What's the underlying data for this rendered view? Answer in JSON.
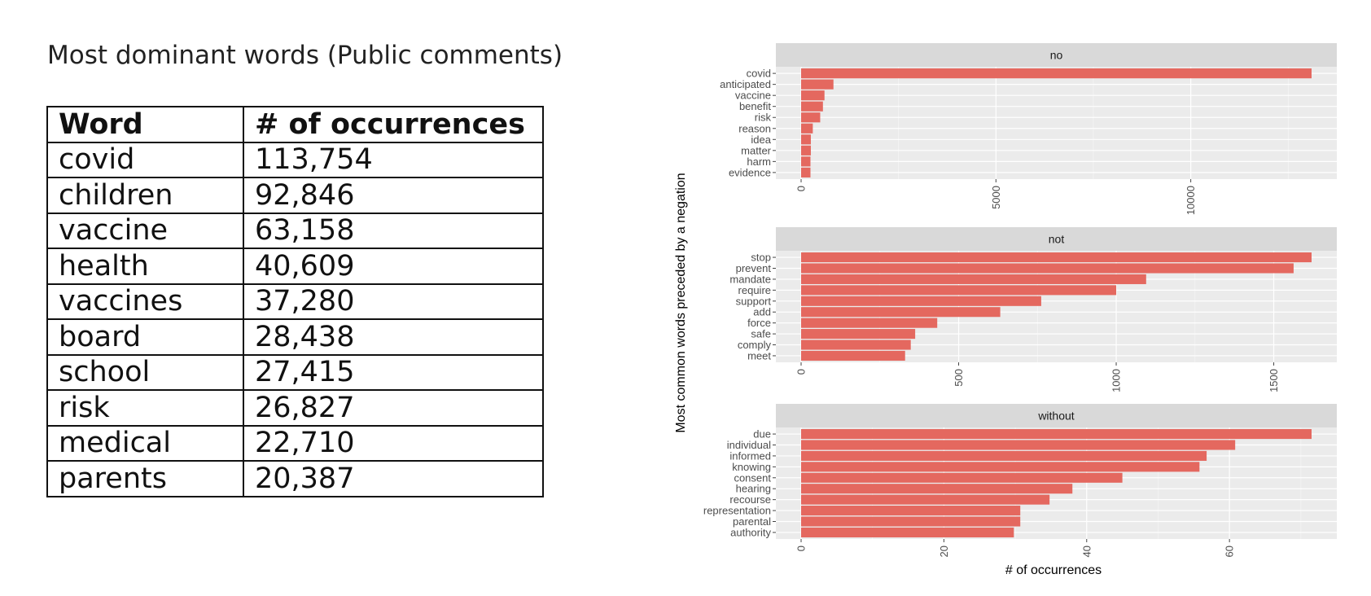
{
  "left": {
    "title": "Most dominant words (Public comments)",
    "table": {
      "headers": [
        "Word",
        "# of occurrences"
      ],
      "rows": [
        [
          "covid",
          "113,754"
        ],
        [
          "children",
          "92,846"
        ],
        [
          "vaccine",
          "63,158"
        ],
        [
          "health",
          "40,609"
        ],
        [
          "vaccines",
          "37,280"
        ],
        [
          "board",
          "28,438"
        ],
        [
          "school",
          "27,415"
        ],
        [
          "risk",
          "26,827"
        ],
        [
          "medical",
          "22,710"
        ],
        [
          "parents",
          "20,387"
        ]
      ]
    }
  },
  "chart_data": {
    "type": "bar",
    "orientation": "horizontal",
    "facets": "by negation word, stacked vertically, independent x scales",
    "ylabel": "Most common words preceded by a negation",
    "xlabel": "# of occurrences",
    "grid": true,
    "bar_color": "#e4685f",
    "panels": [
      {
        "strip": "no",
        "categories": [
          "covid",
          "anticipated",
          "vaccine",
          "benefit",
          "risk",
          "reason",
          "idea",
          "matter",
          "harm",
          "evidence"
        ],
        "values": [
          13100,
          830,
          600,
          560,
          490,
          300,
          250,
          250,
          240,
          240
        ],
        "xlim": [
          0,
          13100
        ],
        "xticks": [
          0,
          5000,
          10000
        ]
      },
      {
        "strip": "not",
        "categories": [
          "stop",
          "prevent",
          "mandate",
          "require",
          "support",
          "add",
          "force",
          "safe",
          "comply",
          "meet"
        ],
        "values": [
          1620,
          1563,
          1095,
          1000,
          762,
          632,
          432,
          362,
          348,
          330
        ],
        "xlim": [
          0,
          1620
        ],
        "xticks": [
          0,
          500,
          1000,
          1500
        ]
      },
      {
        "strip": "without",
        "categories": [
          "due",
          "individual",
          "informed",
          "knowing",
          "consent",
          "hearing",
          "recourse",
          "representation",
          "parental",
          "authority"
        ],
        "values": [
          71.5,
          60.8,
          56.8,
          55.8,
          45,
          38,
          34.8,
          30.7,
          30.7,
          29.8
        ],
        "xlim": [
          0,
          71.5
        ],
        "xticks": [
          0,
          20,
          40,
          60
        ]
      }
    ]
  }
}
